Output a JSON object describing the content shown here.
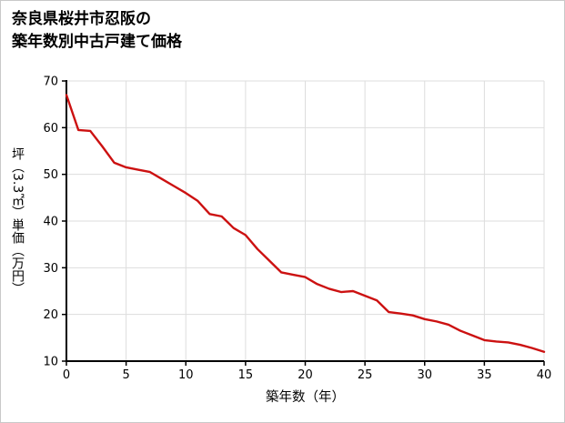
{
  "title": {
    "line1": "奈良県桜井市忍阪の",
    "line2": "築年数別中古戸建て価格"
  },
  "chart_data": {
    "type": "line",
    "title": "奈良県桜井市忍阪の築年数別中古戸建て価格",
    "xlabel": "築年数（年）",
    "ylabel": "坪（3.3㎡）単価（万円）",
    "x": [
      0,
      1,
      2,
      3,
      4,
      5,
      6,
      7,
      8,
      9,
      10,
      11,
      12,
      13,
      14,
      15,
      16,
      17,
      18,
      19,
      20,
      21,
      22,
      23,
      24,
      25,
      26,
      27,
      28,
      29,
      30,
      31,
      32,
      33,
      34,
      35,
      36,
      37,
      38,
      39,
      40
    ],
    "values": [
      67,
      59.5,
      59.3,
      56,
      52.5,
      51.5,
      51,
      50.5,
      49,
      47.5,
      46,
      44.3,
      41.5,
      41,
      38.5,
      37,
      34,
      31.5,
      29,
      28.5,
      28,
      26.5,
      25.5,
      24.8,
      25,
      24,
      23,
      20.5,
      20.2,
      19.8,
      19,
      18.5,
      17.8,
      16.5,
      15.5,
      14.5,
      14.2,
      14,
      13.5,
      12.8,
      12
    ],
    "xlim": [
      0,
      40
    ],
    "ylim": [
      10,
      70
    ],
    "xticks": [
      0,
      5,
      10,
      15,
      20,
      25,
      30,
      35,
      40
    ],
    "yticks": [
      10,
      20,
      30,
      40,
      50,
      60,
      70
    ],
    "grid": true,
    "legend": "none",
    "line_color": "#cc1111",
    "axis_color": "#000000",
    "grid_color": "#dddddd",
    "tick_label_color": "#000000"
  }
}
